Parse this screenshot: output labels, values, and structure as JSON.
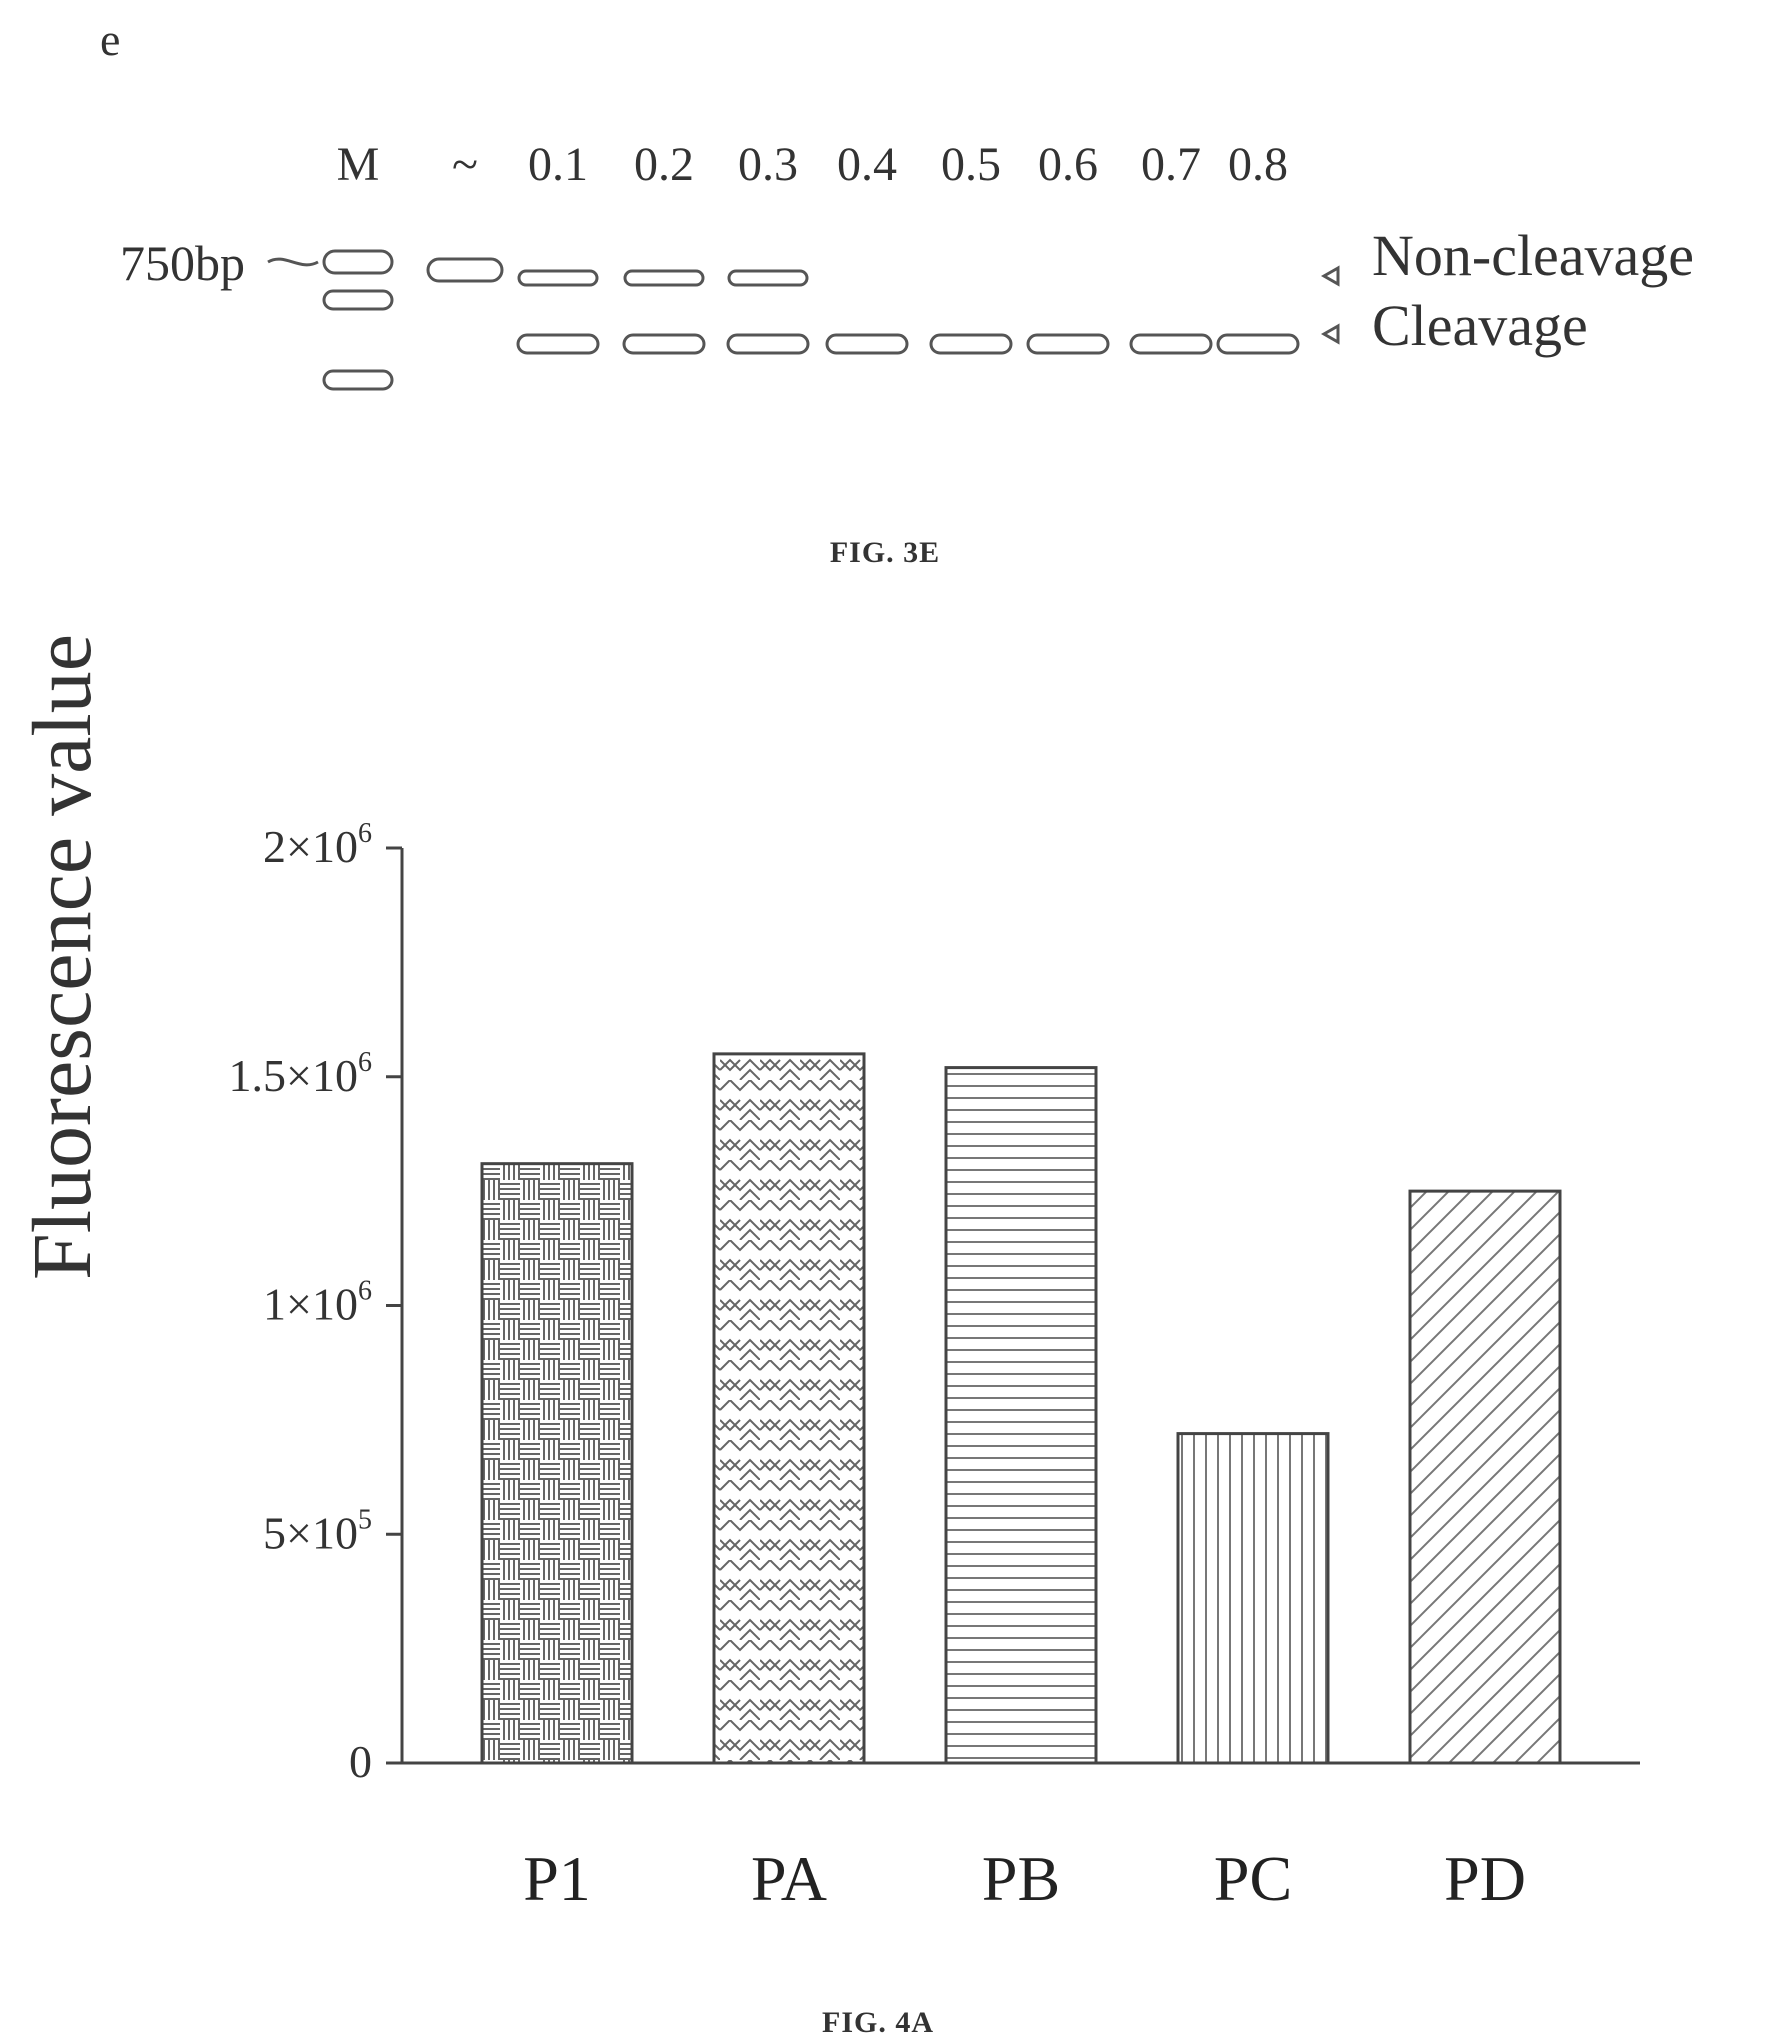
{
  "gel": {
    "panel_letter": "e",
    "lanes": [
      "M",
      "~",
      "0.1",
      "0.2",
      "0.3",
      "0.4",
      "0.5",
      "0.6",
      "0.7",
      "0.8"
    ],
    "marker_size": "750bp",
    "labels": {
      "upper": "Non-cleavage",
      "lower": "Cleavage"
    },
    "non_cleavage_lanes": [
      "~",
      "0.1",
      "0.2",
      "0.3"
    ],
    "cleavage_lanes": [
      "0.1",
      "0.2",
      "0.3",
      "0.4",
      "0.5",
      "0.6",
      "0.7",
      "0.8"
    ],
    "caption": "FIG. 3E"
  },
  "chart_data": {
    "type": "bar",
    "categories": [
      "P1",
      "PA",
      "PB",
      "PC",
      "PD"
    ],
    "values": [
      1310000,
      1550000,
      1520000,
      720000,
      1250000
    ],
    "patterns": [
      "basketweave",
      "herringbone",
      "horizontal-lines",
      "vertical-lines",
      "diagonal-lines"
    ],
    "xlabel": "",
    "ylabel": "Fluorescence value",
    "ylim": [
      0,
      2000000
    ],
    "yticks": [
      {
        "value": 0,
        "label": "0"
      },
      {
        "value": 500000,
        "label": "5×10",
        "exp": "5"
      },
      {
        "value": 1000000,
        "label": "1×10",
        "exp": "6"
      },
      {
        "value": 1500000,
        "label": "1.5×10",
        "exp": "6"
      },
      {
        "value": 2000000,
        "label": "2×10",
        "exp": "6"
      }
    ],
    "grid": false,
    "caption": "FIG. 4A"
  }
}
